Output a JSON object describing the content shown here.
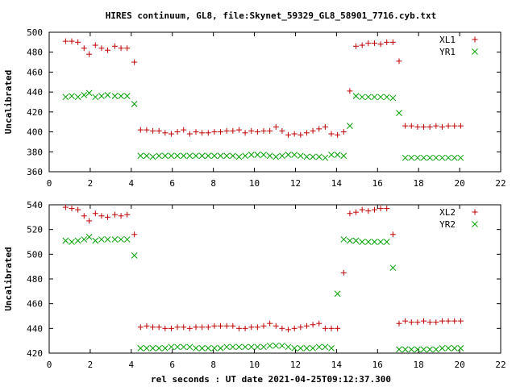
{
  "title": "HIRES continuum, GL8, file:Skynet_59329_GL8_58901_7716.cyb.txt",
  "xlabel": "rel seconds : UT date 2021-04-25T09:12:37.300",
  "colors": {
    "series1": "#c00000",
    "series2": "#00a000",
    "axis": "#000000"
  },
  "chart_data": [
    {
      "type": "scatter",
      "ylabel": "Uncalibrated",
      "xlim": [
        0,
        22
      ],
      "ylim": [
        360,
        500
      ],
      "xticks": [
        0,
        2,
        4,
        6,
        8,
        10,
        12,
        14,
        16,
        18,
        20,
        22
      ],
      "yticks": [
        360,
        380,
        400,
        420,
        440,
        460,
        480,
        500
      ],
      "grid": false,
      "legend_position": "top-right",
      "series": [
        {
          "name": "XL1",
          "marker": "plus",
          "color": "#c00000",
          "x": [
            0.8,
            1.1,
            1.4,
            1.7,
            1.95,
            2.25,
            2.55,
            2.85,
            3.2,
            3.5,
            3.8,
            4.15,
            4.45,
            4.75,
            5.05,
            5.35,
            5.65,
            5.95,
            6.25,
            6.55,
            6.85,
            7.15,
            7.45,
            7.75,
            8.05,
            8.35,
            8.65,
            8.95,
            9.25,
            9.55,
            9.85,
            10.15,
            10.45,
            10.75,
            11.05,
            11.35,
            11.65,
            11.95,
            12.25,
            12.55,
            12.85,
            13.15,
            13.45,
            13.75,
            14.05,
            14.35,
            14.65,
            14.95,
            15.25,
            15.55,
            15.85,
            16.15,
            16.45,
            16.75,
            17.05,
            17.35,
            17.65,
            17.95,
            18.25,
            18.55,
            18.85,
            19.15,
            19.45,
            19.75,
            20.05
          ],
          "y": [
            491,
            491,
            490,
            484,
            478,
            487,
            484,
            482,
            486,
            484,
            484,
            470,
            402,
            402,
            401,
            401,
            399,
            398,
            400,
            402,
            398,
            400,
            399,
            399,
            400,
            400,
            401,
            401,
            402,
            399,
            401,
            400,
            401,
            401,
            405,
            401,
            397,
            398,
            397,
            399,
            401,
            403,
            405,
            398,
            397,
            400,
            441,
            486,
            487,
            489,
            489,
            488,
            490,
            490,
            471,
            406,
            406,
            405,
            405,
            405,
            406,
            405,
            406,
            406,
            406
          ]
        },
        {
          "name": "YR1",
          "marker": "cross",
          "color": "#00a000",
          "x": [
            0.8,
            1.1,
            1.4,
            1.7,
            1.95,
            2.25,
            2.55,
            2.85,
            3.2,
            3.5,
            3.8,
            4.15,
            4.45,
            4.75,
            5.05,
            5.35,
            5.65,
            5.95,
            6.25,
            6.55,
            6.85,
            7.15,
            7.45,
            7.75,
            8.05,
            8.35,
            8.65,
            8.95,
            9.25,
            9.55,
            9.85,
            10.15,
            10.45,
            10.75,
            11.05,
            11.35,
            11.65,
            11.95,
            12.25,
            12.55,
            12.85,
            13.15,
            13.45,
            13.75,
            14.05,
            14.35,
            14.65,
            14.95,
            15.25,
            15.55,
            15.85,
            16.15,
            16.45,
            16.75,
            17.05,
            17.35,
            17.65,
            17.95,
            18.25,
            18.55,
            18.85,
            19.15,
            19.45,
            19.75,
            20.05
          ],
          "y": [
            435,
            436,
            435,
            437,
            439,
            435,
            436,
            437,
            436,
            436,
            436,
            428,
            376,
            376,
            375,
            376,
            376,
            376,
            376,
            376,
            376,
            376,
            376,
            376,
            376,
            376,
            376,
            376,
            375,
            376,
            377,
            377,
            377,
            376,
            375,
            376,
            377,
            377,
            376,
            375,
            375,
            375,
            374,
            377,
            377,
            376,
            406,
            436,
            435,
            435,
            435,
            435,
            435,
            434,
            419,
            374,
            374,
            374,
            374,
            374,
            374,
            374,
            374,
            374,
            374
          ]
        }
      ]
    },
    {
      "type": "scatter",
      "ylabel": "Uncalibrated",
      "xlim": [
        0,
        22
      ],
      "ylim": [
        420,
        540
      ],
      "xticks": [
        0,
        2,
        4,
        6,
        8,
        10,
        12,
        14,
        16,
        18,
        20,
        22
      ],
      "yticks": [
        420,
        440,
        460,
        480,
        500,
        520,
        540
      ],
      "grid": false,
      "legend_position": "top-right",
      "series": [
        {
          "name": "XL2",
          "marker": "plus",
          "color": "#c00000",
          "x": [
            0.8,
            1.1,
            1.4,
            1.7,
            1.95,
            2.25,
            2.55,
            2.85,
            3.2,
            3.5,
            3.8,
            4.15,
            4.45,
            4.75,
            5.05,
            5.35,
            5.65,
            5.95,
            6.25,
            6.55,
            6.85,
            7.15,
            7.45,
            7.75,
            8.05,
            8.35,
            8.65,
            8.95,
            9.25,
            9.55,
            9.85,
            10.15,
            10.45,
            10.75,
            11.05,
            11.35,
            11.65,
            11.95,
            12.25,
            12.55,
            12.85,
            13.15,
            13.45,
            13.75,
            14.05,
            14.35,
            14.65,
            14.95,
            15.25,
            15.55,
            15.85,
            16.15,
            16.45,
            16.75,
            17.05,
            17.35,
            17.65,
            17.95,
            18.25,
            18.55,
            18.85,
            19.15,
            19.45,
            19.75,
            20.05
          ],
          "y": [
            538,
            537,
            536,
            531,
            527,
            533,
            531,
            530,
            532,
            531,
            532,
            516,
            441,
            442,
            441,
            441,
            440,
            440,
            441,
            441,
            440,
            441,
            441,
            441,
            442,
            442,
            442,
            442,
            440,
            440,
            441,
            441,
            442,
            444,
            442,
            440,
            439,
            440,
            441,
            442,
            443,
            444,
            440,
            440,
            440,
            485,
            533,
            534,
            536,
            535,
            536,
            537,
            537,
            516,
            444,
            446,
            445,
            445,
            446,
            445,
            445,
            446,
            446,
            446,
            446
          ]
        },
        {
          "name": "YR2",
          "marker": "cross",
          "color": "#00a000",
          "x": [
            0.8,
            1.1,
            1.4,
            1.7,
            1.95,
            2.25,
            2.55,
            2.85,
            3.2,
            3.5,
            3.8,
            4.15,
            4.45,
            4.75,
            5.05,
            5.35,
            5.65,
            5.95,
            6.25,
            6.55,
            6.85,
            7.15,
            7.45,
            7.75,
            8.05,
            8.35,
            8.65,
            8.95,
            9.25,
            9.55,
            9.85,
            10.15,
            10.45,
            10.75,
            11.05,
            11.35,
            11.65,
            11.95,
            12.25,
            12.55,
            12.85,
            13.15,
            13.45,
            13.75,
            14.05,
            14.35,
            14.65,
            14.95,
            15.25,
            15.55,
            15.85,
            16.15,
            16.45,
            16.75,
            17.05,
            17.35,
            17.65,
            17.95,
            18.25,
            18.55,
            18.85,
            19.15,
            19.45,
            19.75,
            20.05
          ],
          "y": [
            511,
            510,
            511,
            512,
            514,
            511,
            512,
            512,
            512,
            512,
            512,
            499,
            424,
            424,
            424,
            424,
            424,
            425,
            425,
            425,
            425,
            424,
            424,
            424,
            424,
            424,
            425,
            425,
            425,
            425,
            425,
            425,
            425,
            426,
            426,
            426,
            425,
            424,
            424,
            424,
            424,
            425,
            425,
            424,
            468,
            512,
            511,
            511,
            510,
            510,
            510,
            510,
            510,
            489,
            423,
            423,
            423,
            423,
            423,
            423,
            423,
            424,
            424,
            424,
            424
          ]
        }
      ]
    }
  ]
}
